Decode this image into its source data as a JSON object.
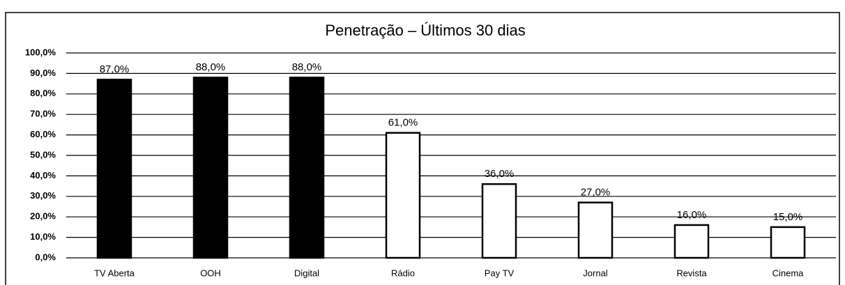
{
  "chart_data": {
    "type": "bar",
    "title": "Penetração –  Últimos 30 dias",
    "categories": [
      "TV Aberta",
      "OOH",
      "Digital",
      "Rádio",
      "Pay TV",
      "Jornal",
      "Revista",
      "Cinema"
    ],
    "values": [
      87,
      88,
      88,
      61,
      36,
      27,
      16,
      15
    ],
    "value_labels": [
      "87,0%",
      "88,0%",
      "88,0%",
      "61,0%",
      "36,0%",
      "27,0%",
      "16,0%",
      "15,0%"
    ],
    "colors": [
      "#000000",
      "#000000",
      "#000000",
      "#ffffff",
      "#ffffff",
      "#ffffff",
      "#ffffff",
      "#ffffff"
    ],
    "ylim": [
      0,
      100
    ],
    "yticks": [
      {
        "value": 0,
        "label": "0,0%"
      },
      {
        "value": 10,
        "label": "10,0%"
      },
      {
        "value": 20,
        "label": "20,0%"
      },
      {
        "value": 30,
        "label": "30,0%"
      },
      {
        "value": 40,
        "label": "40,0%"
      },
      {
        "value": 50,
        "label": "50,0%"
      },
      {
        "value": 60,
        "label": "60,0%"
      },
      {
        "value": 70,
        "label": "70,0%"
      },
      {
        "value": 80,
        "label": "80,0%"
      },
      {
        "value": 90,
        "label": "90,0%"
      },
      {
        "value": 100,
        "label": "100,0%"
      }
    ],
    "grid": true
  }
}
